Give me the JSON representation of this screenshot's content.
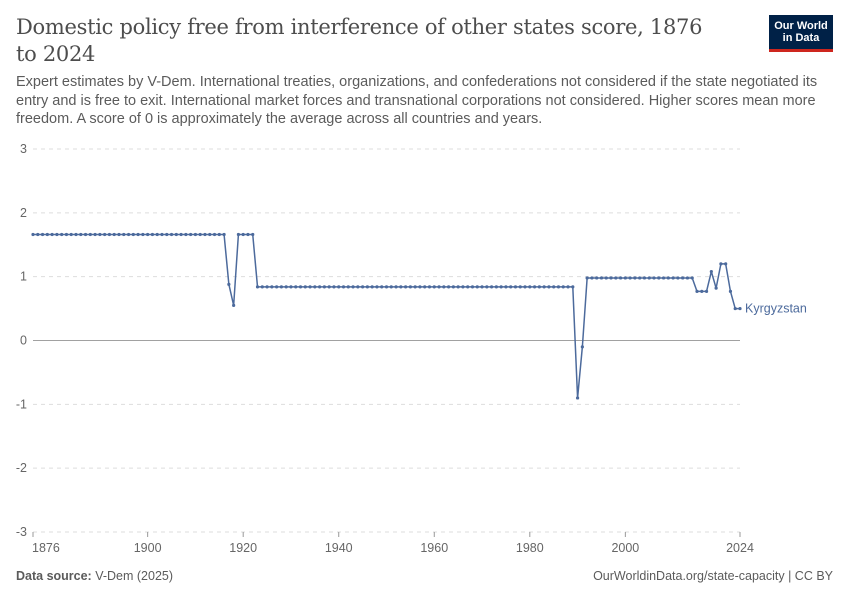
{
  "header": {
    "title": "Domestic policy free from interference of other states score, 1876 to 2024",
    "subtitle": "Expert estimates by V-Dem. International treaties, organizations, and confederations not considered if the state negotiated its entry and is free to exit. International market forces and transnational corporations not considered. Higher scores mean more freedom. A score of 0 is approximately the average across all countries and years.",
    "logo_line1": "Our World",
    "logo_line2": "in Data"
  },
  "footer": {
    "source_label": "Data source:",
    "source_value": "V-Dem (2025)",
    "link": "OurWorldinData.org/state-capacity | CC BY"
  },
  "colors": {
    "series": "#4c6a9c",
    "grid": "#dddddd",
    "zero_line": "#a1a1a1",
    "axis_text": "#666666"
  },
  "chart_data": {
    "type": "line",
    "title": "Domestic policy free from interference of other states score, 1876 to 2024",
    "xlabel": "",
    "ylabel": "",
    "xlim": [
      1876,
      2024
    ],
    "ylim": [
      -3,
      3
    ],
    "x_ticks": [
      "1876",
      "1900",
      "1920",
      "1940",
      "1960",
      "1980",
      "2000",
      "2024"
    ],
    "x_tick_values": [
      1876,
      1900,
      1920,
      1940,
      1960,
      1980,
      2000,
      2024
    ],
    "y_ticks": [
      "3",
      "2",
      "1",
      "0",
      "-1",
      "-2",
      "-3"
    ],
    "y_tick_values": [
      3,
      2,
      1,
      0,
      -1,
      -2,
      -3
    ],
    "grid": "horizontal dashed",
    "legend": "inline label at line end",
    "series": [
      {
        "name": "Kyrgyzstan",
        "points": [
          [
            1876,
            1.66
          ],
          [
            1877,
            1.66
          ],
          [
            1878,
            1.66
          ],
          [
            1879,
            1.66
          ],
          [
            1880,
            1.66
          ],
          [
            1881,
            1.66
          ],
          [
            1882,
            1.66
          ],
          [
            1883,
            1.66
          ],
          [
            1884,
            1.66
          ],
          [
            1885,
            1.66
          ],
          [
            1886,
            1.66
          ],
          [
            1887,
            1.66
          ],
          [
            1888,
            1.66
          ],
          [
            1889,
            1.66
          ],
          [
            1890,
            1.66
          ],
          [
            1891,
            1.66
          ],
          [
            1892,
            1.66
          ],
          [
            1893,
            1.66
          ],
          [
            1894,
            1.66
          ],
          [
            1895,
            1.66
          ],
          [
            1896,
            1.66
          ],
          [
            1897,
            1.66
          ],
          [
            1898,
            1.66
          ],
          [
            1899,
            1.66
          ],
          [
            1900,
            1.66
          ],
          [
            1901,
            1.66
          ],
          [
            1902,
            1.66
          ],
          [
            1903,
            1.66
          ],
          [
            1904,
            1.66
          ],
          [
            1905,
            1.66
          ],
          [
            1906,
            1.66
          ],
          [
            1907,
            1.66
          ],
          [
            1908,
            1.66
          ],
          [
            1909,
            1.66
          ],
          [
            1910,
            1.66
          ],
          [
            1911,
            1.66
          ],
          [
            1912,
            1.66
          ],
          [
            1913,
            1.66
          ],
          [
            1914,
            1.66
          ],
          [
            1915,
            1.66
          ],
          [
            1916,
            1.66
          ],
          [
            1917,
            0.88
          ],
          [
            1918,
            0.55
          ],
          [
            1919,
            1.66
          ],
          [
            1920,
            1.66
          ],
          [
            1921,
            1.66
          ],
          [
            1922,
            1.66
          ],
          [
            1923,
            0.84
          ],
          [
            1924,
            0.84
          ],
          [
            1925,
            0.84
          ],
          [
            1926,
            0.84
          ],
          [
            1927,
            0.84
          ],
          [
            1928,
            0.84
          ],
          [
            1929,
            0.84
          ],
          [
            1930,
            0.84
          ],
          [
            1931,
            0.84
          ],
          [
            1932,
            0.84
          ],
          [
            1933,
            0.84
          ],
          [
            1934,
            0.84
          ],
          [
            1935,
            0.84
          ],
          [
            1936,
            0.84
          ],
          [
            1937,
            0.84
          ],
          [
            1938,
            0.84
          ],
          [
            1939,
            0.84
          ],
          [
            1940,
            0.84
          ],
          [
            1941,
            0.84
          ],
          [
            1942,
            0.84
          ],
          [
            1943,
            0.84
          ],
          [
            1944,
            0.84
          ],
          [
            1945,
            0.84
          ],
          [
            1946,
            0.84
          ],
          [
            1947,
            0.84
          ],
          [
            1948,
            0.84
          ],
          [
            1949,
            0.84
          ],
          [
            1950,
            0.84
          ],
          [
            1951,
            0.84
          ],
          [
            1952,
            0.84
          ],
          [
            1953,
            0.84
          ],
          [
            1954,
            0.84
          ],
          [
            1955,
            0.84
          ],
          [
            1956,
            0.84
          ],
          [
            1957,
            0.84
          ],
          [
            1958,
            0.84
          ],
          [
            1959,
            0.84
          ],
          [
            1960,
            0.84
          ],
          [
            1961,
            0.84
          ],
          [
            1962,
            0.84
          ],
          [
            1963,
            0.84
          ],
          [
            1964,
            0.84
          ],
          [
            1965,
            0.84
          ],
          [
            1966,
            0.84
          ],
          [
            1967,
            0.84
          ],
          [
            1968,
            0.84
          ],
          [
            1969,
            0.84
          ],
          [
            1970,
            0.84
          ],
          [
            1971,
            0.84
          ],
          [
            1972,
            0.84
          ],
          [
            1973,
            0.84
          ],
          [
            1974,
            0.84
          ],
          [
            1975,
            0.84
          ],
          [
            1976,
            0.84
          ],
          [
            1977,
            0.84
          ],
          [
            1978,
            0.84
          ],
          [
            1979,
            0.84
          ],
          [
            1980,
            0.84
          ],
          [
            1981,
            0.84
          ],
          [
            1982,
            0.84
          ],
          [
            1983,
            0.84
          ],
          [
            1984,
            0.84
          ],
          [
            1985,
            0.84
          ],
          [
            1986,
            0.84
          ],
          [
            1987,
            0.84
          ],
          [
            1988,
            0.84
          ],
          [
            1989,
            0.84
          ],
          [
            1990,
            -0.9
          ],
          [
            1991,
            -0.1
          ],
          [
            1992,
            0.98
          ],
          [
            1993,
            0.98
          ],
          [
            1994,
            0.98
          ],
          [
            1995,
            0.98
          ],
          [
            1996,
            0.98
          ],
          [
            1997,
            0.98
          ],
          [
            1998,
            0.98
          ],
          [
            1999,
            0.98
          ],
          [
            2000,
            0.98
          ],
          [
            2001,
            0.98
          ],
          [
            2002,
            0.98
          ],
          [
            2003,
            0.98
          ],
          [
            2004,
            0.98
          ],
          [
            2005,
            0.98
          ],
          [
            2006,
            0.98
          ],
          [
            2007,
            0.98
          ],
          [
            2008,
            0.98
          ],
          [
            2009,
            0.98
          ],
          [
            2010,
            0.98
          ],
          [
            2011,
            0.98
          ],
          [
            2012,
            0.98
          ],
          [
            2013,
            0.98
          ],
          [
            2014,
            0.98
          ],
          [
            2015,
            0.77
          ],
          [
            2016,
            0.77
          ],
          [
            2017,
            0.77
          ],
          [
            2018,
            1.08
          ],
          [
            2019,
            0.82
          ],
          [
            2020,
            1.2
          ],
          [
            2021,
            1.2
          ],
          [
            2022,
            0.77
          ],
          [
            2023,
            0.5
          ],
          [
            2024,
            0.5
          ]
        ]
      }
    ]
  }
}
